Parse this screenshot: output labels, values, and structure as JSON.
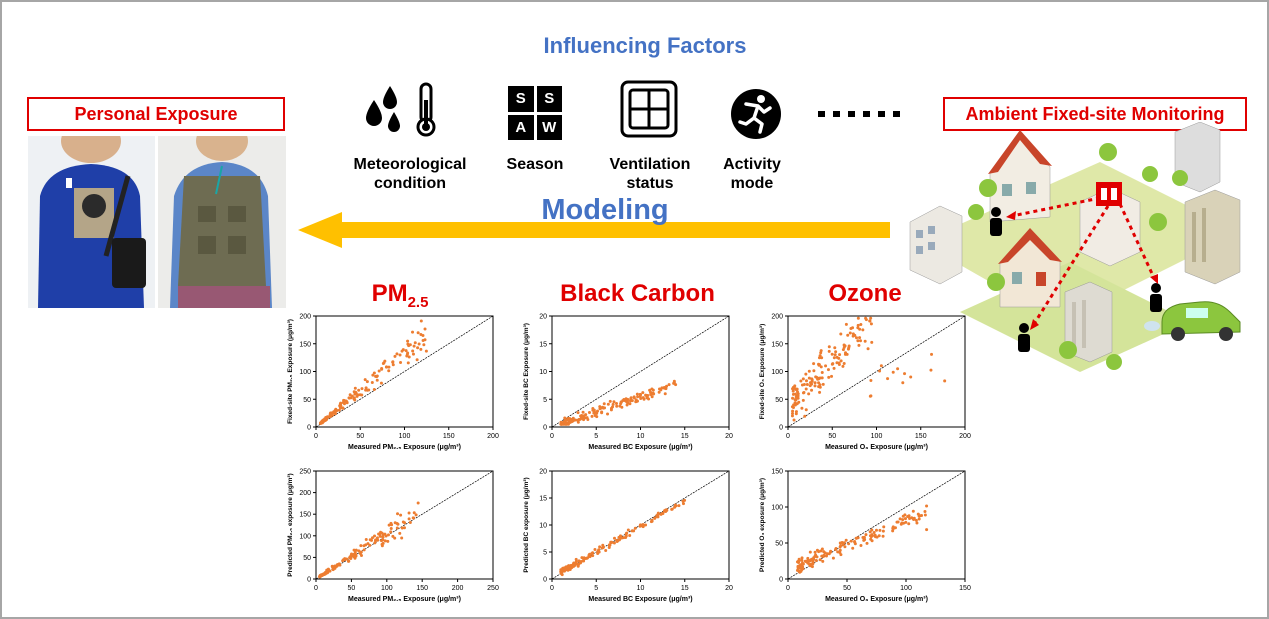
{
  "header": {
    "title": "Influencing Factors"
  },
  "left_label": "Personal Exposure",
  "right_label": "Ambient Fixed-site Monitoring",
  "arrow_label": "Modeling",
  "factors": [
    {
      "icon": "weather-icon",
      "line1": "Meteorological",
      "line2": "condition"
    },
    {
      "icon": "season-icon",
      "line1": "Season",
      "line2": "",
      "tiles": [
        "S",
        "S",
        "A",
        "W"
      ]
    },
    {
      "icon": "window-icon",
      "line1": "Ventilation",
      "line2": "status"
    },
    {
      "icon": "activity-icon",
      "line1": "Activity",
      "line2": "mode"
    }
  ],
  "pollutants": [
    {
      "name": "PM",
      "sub": "2.5"
    },
    {
      "name": "Black Carbon",
      "sub": ""
    },
    {
      "name": "Ozone",
      "sub": ""
    }
  ],
  "colors": {
    "accent_blue": "#4472c4",
    "red": "#e00000",
    "arrow": "#ffc000",
    "points": "#ed7d31"
  },
  "chart_data": [
    {
      "type": "scatter",
      "id": "pm-fixed",
      "xlabel": "Measured PM₂.₅ Exposure (μg/m³)",
      "ylabel": "Fixed-site PM₂.₅ Exposure (μg/m³)",
      "xlim": [
        0,
        200
      ],
      "ylim": [
        0,
        200
      ],
      "xticks": [
        0,
        50,
        100,
        150,
        200
      ],
      "yticks": [
        0,
        50,
        100,
        150,
        200
      ],
      "has_identity_line": true
    },
    {
      "type": "scatter",
      "id": "bc-fixed",
      "xlabel": "Measured BC Exposure (μg/m³)",
      "ylabel": "Fixed-site BC Exposure (μg/m³)",
      "xlim": [
        0,
        20
      ],
      "ylim": [
        0,
        20
      ],
      "xticks": [
        0,
        5,
        10,
        15,
        20
      ],
      "yticks": [
        0,
        5,
        10,
        15,
        20
      ],
      "has_identity_line": true
    },
    {
      "type": "scatter",
      "id": "o3-fixed",
      "xlabel": "Measured O₃ Exposure (μg/m³)",
      "ylabel": "Fixed-site O₃ Exposure (μg/m³)",
      "xlim": [
        0,
        200
      ],
      "ylim": [
        0,
        200
      ],
      "xticks": [
        0,
        50,
        100,
        150,
        200
      ],
      "yticks": [
        0,
        50,
        100,
        150,
        200
      ],
      "has_identity_line": true
    },
    {
      "type": "scatter",
      "id": "pm-pred",
      "xlabel": "Measured PM₂.₅ Exposure (μg/m³)",
      "ylabel": "Predicted PM₂.₅ exposure (μg/m³)",
      "xlim": [
        0,
        250
      ],
      "ylim": [
        0,
        250
      ],
      "xticks": [
        0,
        50,
        100,
        150,
        200,
        250
      ],
      "yticks": [
        0,
        50,
        100,
        150,
        200,
        250
      ],
      "has_identity_line": true
    },
    {
      "type": "scatter",
      "id": "bc-pred",
      "xlabel": "Measured BC Exposure (μg/m³)",
      "ylabel": "Predicted BC exposure (μg/m³)",
      "xlim": [
        0,
        20
      ],
      "ylim": [
        0,
        20
      ],
      "xticks": [
        0,
        5,
        10,
        15,
        20
      ],
      "yticks": [
        0,
        5,
        10,
        15,
        20
      ],
      "has_identity_line": true
    },
    {
      "type": "scatter",
      "id": "o3-pred",
      "xlabel": "Measured O₃ Exposure (μg/m³)",
      "ylabel": "Predicted O₃ exposure (μg/m³)",
      "xlim": [
        0,
        150
      ],
      "ylim": [
        0,
        150
      ],
      "xticks": [
        0,
        50,
        100,
        150
      ],
      "yticks": [
        0,
        50,
        100,
        150
      ],
      "has_identity_line": true
    }
  ]
}
